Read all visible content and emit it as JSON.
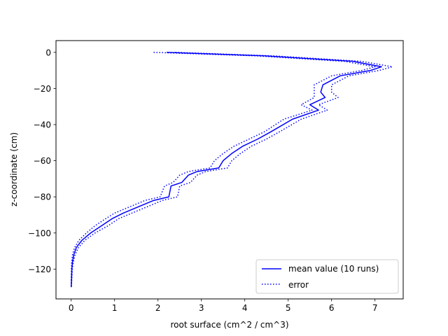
{
  "chart_data": {
    "type": "line",
    "title": "",
    "xlabel": "root surface (cm^2 / cm^3)",
    "ylabel": "z-coordinate (cm)",
    "xlim": [
      -0.35,
      7.65
    ],
    "ylim": [
      -136.5,
      6.5
    ],
    "xticks": [
      0,
      1,
      2,
      3,
      4,
      5,
      6,
      7
    ],
    "yticks": [
      0,
      -20,
      -40,
      -60,
      -80,
      -100,
      -120
    ],
    "grid": false,
    "legend_position": "lower-right",
    "series": [
      {
        "name": "mean value (10 runs)",
        "style": "solid",
        "color": "#0000ff",
        "points": [
          [
            2.2,
            0
          ],
          [
            4.5,
            -2
          ],
          [
            6.5,
            -5
          ],
          [
            7.15,
            -8
          ],
          [
            6.9,
            -10
          ],
          [
            6.2,
            -13
          ],
          [
            5.8,
            -18
          ],
          [
            5.75,
            -22
          ],
          [
            5.85,
            -25
          ],
          [
            5.5,
            -29
          ],
          [
            5.7,
            -32
          ],
          [
            5.1,
            -37
          ],
          [
            4.6,
            -44
          ],
          [
            4.3,
            -48
          ],
          [
            3.95,
            -52
          ],
          [
            3.7,
            -56
          ],
          [
            3.5,
            -60
          ],
          [
            3.4,
            -64
          ],
          [
            2.9,
            -66
          ],
          [
            2.7,
            -68
          ],
          [
            2.55,
            -72
          ],
          [
            2.3,
            -74
          ],
          [
            2.25,
            -80
          ],
          [
            1.9,
            -82
          ],
          [
            1.6,
            -85
          ],
          [
            1.2,
            -89
          ],
          [
            0.95,
            -92
          ],
          [
            0.7,
            -96
          ],
          [
            0.45,
            -100
          ],
          [
            0.25,
            -104
          ],
          [
            0.12,
            -108
          ],
          [
            0.06,
            -112
          ],
          [
            0.03,
            -116
          ],
          [
            0.015,
            -120
          ],
          [
            0.01,
            -125
          ],
          [
            0,
            -130
          ]
        ]
      },
      {
        "name": "error",
        "style": "dotted",
        "color": "#0000ff",
        "points": [
          [
            1.9,
            0
          ],
          [
            4.3,
            -2
          ],
          [
            6.3,
            -5
          ],
          [
            7.0,
            -8
          ],
          [
            6.7,
            -10
          ],
          [
            6.0,
            -13
          ],
          [
            5.6,
            -18
          ],
          [
            5.6,
            -22
          ],
          [
            5.6,
            -25
          ],
          [
            5.3,
            -29
          ],
          [
            5.55,
            -32
          ],
          [
            4.9,
            -37
          ],
          [
            4.45,
            -44
          ],
          [
            4.1,
            -48
          ],
          [
            3.75,
            -52
          ],
          [
            3.5,
            -56
          ],
          [
            3.3,
            -60
          ],
          [
            3.2,
            -64
          ],
          [
            2.7,
            -66
          ],
          [
            2.5,
            -68
          ],
          [
            2.35,
            -72
          ],
          [
            2.15,
            -74
          ],
          [
            2.05,
            -80
          ],
          [
            1.7,
            -82
          ],
          [
            1.4,
            -85
          ],
          [
            1.0,
            -89
          ],
          [
            0.8,
            -92
          ],
          [
            0.55,
            -96
          ],
          [
            0.35,
            -100
          ],
          [
            0.18,
            -104
          ],
          [
            0.08,
            -108
          ],
          [
            0.03,
            -112
          ],
          [
            0.01,
            -116
          ],
          [
            0.005,
            -120
          ],
          [
            0,
            -125
          ],
          [
            0,
            -130
          ]
        ]
      },
      {
        "name": "",
        "style": "dotted",
        "color": "#0000ff",
        "points": [
          [
            2.4,
            0
          ],
          [
            4.7,
            -2
          ],
          [
            6.7,
            -5
          ],
          [
            7.4,
            -8
          ],
          [
            7.1,
            -10
          ],
          [
            6.4,
            -13
          ],
          [
            6.0,
            -18
          ],
          [
            6.0,
            -22
          ],
          [
            6.15,
            -25
          ],
          [
            5.7,
            -29
          ],
          [
            5.9,
            -32
          ],
          [
            5.3,
            -37
          ],
          [
            4.8,
            -44
          ],
          [
            4.5,
            -48
          ],
          [
            4.15,
            -52
          ],
          [
            3.9,
            -56
          ],
          [
            3.7,
            -60
          ],
          [
            3.6,
            -64
          ],
          [
            3.1,
            -66
          ],
          [
            2.9,
            -68
          ],
          [
            2.75,
            -72
          ],
          [
            2.5,
            -74
          ],
          [
            2.45,
            -80
          ],
          [
            2.1,
            -82
          ],
          [
            1.8,
            -85
          ],
          [
            1.4,
            -89
          ],
          [
            1.1,
            -92
          ],
          [
            0.85,
            -96
          ],
          [
            0.55,
            -100
          ],
          [
            0.32,
            -104
          ],
          [
            0.17,
            -108
          ],
          [
            0.09,
            -112
          ],
          [
            0.05,
            -116
          ],
          [
            0.025,
            -120
          ],
          [
            0.015,
            -125
          ],
          [
            0.005,
            -130
          ]
        ]
      }
    ]
  }
}
